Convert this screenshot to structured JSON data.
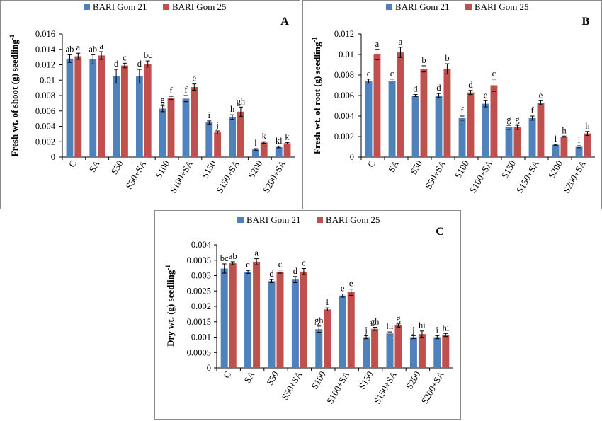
{
  "colors": {
    "series1": "#4F81BD",
    "series2": "#C0504D"
  },
  "chart_data": [
    {
      "panel": "A",
      "type": "bar",
      "title": "",
      "xlabel": "",
      "ylabel": "Fresh wt. of shoot (g) seedling",
      "ylabel_superscript": "-1",
      "ylim": [
        0,
        0.016
      ],
      "ytick_step": 0.002,
      "ytick_labels": [
        "0",
        "0.002",
        "0.004",
        "0.006",
        "0.008",
        "0.01",
        "0.012",
        "0.014",
        "0.016"
      ],
      "categories": [
        "C",
        "SA",
        "S50",
        "S50+SA",
        "S100",
        "S100+SA",
        "S150",
        "S150+SA",
        "S200",
        "S200+SA"
      ],
      "series": [
        {
          "name": "BARI Gom 21",
          "values": [
            0.0128,
            0.0127,
            0.0105,
            0.0105,
            0.0063,
            0.0076,
            0.0045,
            0.0052,
            0.001,
            0.0013
          ],
          "errors": [
            0.0005,
            0.0006,
            0.0009,
            0.0009,
            0.0004,
            0.0004,
            0.0002,
            0.0003,
            0.0001,
            0.0001
          ],
          "letters": [
            "ab",
            "ab",
            "d",
            "d",
            "g",
            "f",
            "i",
            "h",
            "l",
            "kl"
          ]
        },
        {
          "name": "BARI Gom 25",
          "values": [
            0.0131,
            0.0132,
            0.0119,
            0.0121,
            0.0077,
            0.0091,
            0.0032,
            0.0059,
            0.0019,
            0.0018
          ],
          "errors": [
            0.0004,
            0.0005,
            0.0003,
            0.0004,
            0.0002,
            0.0004,
            0.0002,
            0.0006,
            0.0001,
            0.0001
          ],
          "letters": [
            "a",
            "a",
            "c",
            "bc",
            "f",
            "e",
            "j",
            "gh",
            "k",
            "k"
          ]
        }
      ]
    },
    {
      "panel": "B",
      "type": "bar",
      "title": "",
      "xlabel": "",
      "ylabel": "Fresh wt. of root (g) seedling",
      "ylabel_superscript": "-1",
      "ylim": [
        0,
        0.012
      ],
      "ytick_step": 0.002,
      "ytick_labels": [
        "0",
        "0.002",
        "0.004",
        "0.006",
        "0.008",
        "0.01",
        "0.012"
      ],
      "categories": [
        "C",
        "SA",
        "S50",
        "S50+SA",
        "S100",
        "S100+SA",
        "S150",
        "S150+SA",
        "S200",
        "S200+SA"
      ],
      "series": [
        {
          "name": "BARI Gom 21",
          "values": [
            0.0074,
            0.0074,
            0.006,
            0.006,
            0.0038,
            0.0052,
            0.0029,
            0.0038,
            0.0012,
            0.001
          ],
          "errors": [
            0.0002,
            0.0002,
            0.0001,
            0.0002,
            0.0002,
            0.0003,
            0.0002,
            0.0002,
            5e-05,
            0.0001
          ],
          "letters": [
            "c",
            "c",
            "d",
            "d",
            "f",
            "e",
            "g",
            "f",
            "i",
            "i"
          ]
        },
        {
          "name": "BARI Gom 25",
          "values": [
            0.01,
            0.0102,
            0.0086,
            0.0086,
            0.0063,
            0.007,
            0.0029,
            0.0053,
            0.002,
            0.0023
          ],
          "errors": [
            0.0005,
            0.0005,
            0.0003,
            0.0005,
            0.0002,
            0.0006,
            0.0002,
            0.0002,
            5e-05,
            0.0002
          ],
          "letters": [
            "a",
            "a",
            "b",
            "b",
            "d",
            "c",
            "g",
            "e",
            "h",
            "h"
          ]
        }
      ]
    },
    {
      "panel": "C",
      "type": "bar",
      "title": "",
      "xlabel": "",
      "ylabel": "Dry wt. (g) seedling",
      "ylabel_superscript": "-1",
      "ylim": [
        0,
        0.004
      ],
      "ytick_step": 0.0005,
      "ytick_labels": [
        "0",
        "0.0005",
        "0.001",
        "0.0015",
        "0.002",
        "0.0025",
        "0.003",
        "0.0035",
        "0.004"
      ],
      "categories": [
        "C",
        "SA",
        "S50",
        "S50+SA",
        "S100",
        "S100+SA",
        "S150",
        "S150+SA",
        "S200",
        "S200+SA"
      ],
      "series": [
        {
          "name": "BARI Gom 21",
          "values": [
            0.00323,
            0.00312,
            0.00282,
            0.00287,
            0.00126,
            0.00235,
            0.001,
            0.00112,
            0.001,
            0.001
          ],
          "errors": [
            0.00015,
            5e-05,
            5e-05,
            0.0001,
            0.0001,
            5e-05,
            5e-05,
            5e-05,
            5e-05,
            5e-05
          ],
          "letters": [
            "bc",
            "c",
            "d",
            "d",
            "gh",
            "e",
            "j",
            "hi",
            "j",
            "i"
          ]
        },
        {
          "name": "BARI Gom 25",
          "values": [
            0.0034,
            0.00345,
            0.00313,
            0.00313,
            0.0019,
            0.00246,
            0.00127,
            0.00138,
            0.0011,
            0.00107
          ],
          "errors": [
            5e-05,
            0.0001,
            5e-05,
            0.0001,
            5e-05,
            0.0001,
            5e-05,
            5e-05,
            0.0001,
            5e-05
          ],
          "letters": [
            "ab",
            "a",
            "c",
            "c",
            "f",
            "e",
            "gh",
            "g",
            "hi",
            "hi"
          ]
        }
      ]
    }
  ]
}
